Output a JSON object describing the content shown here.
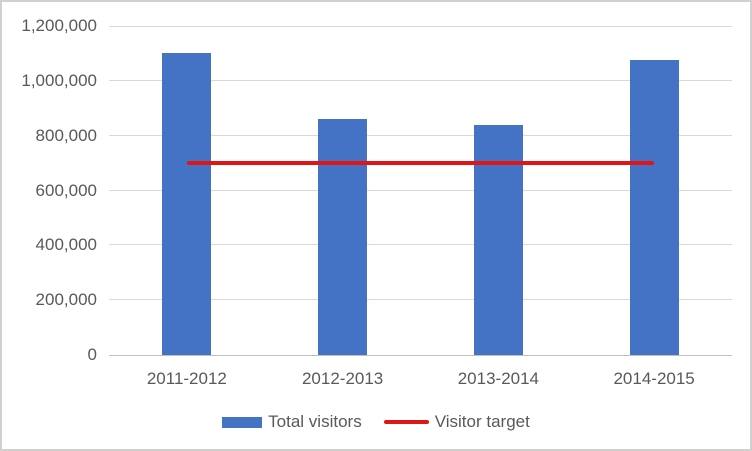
{
  "chart_data": {
    "type": "bar",
    "title": "",
    "categories": [
      "2011-2012",
      "2012-2013",
      "2013-2014",
      "2014-2015"
    ],
    "series": [
      {
        "name": "Total visitors",
        "type": "bar",
        "values": [
          1100000,
          860000,
          840000,
          1075000
        ],
        "color": "#4472C4"
      },
      {
        "name": "Visitor target",
        "type": "line",
        "values": [
          700000,
          700000,
          700000,
          700000
        ],
        "color": "#E01515"
      }
    ],
    "xlabel": "",
    "ylabel": "",
    "ylim": [
      0,
      1200000
    ],
    "ytick_step": 200000,
    "ytick_labels": [
      "0",
      "200,000",
      "400,000",
      "600,000",
      "800,000",
      "1,000,000",
      "1,200,000"
    ],
    "grid": true,
    "legend_position": "bottom"
  }
}
